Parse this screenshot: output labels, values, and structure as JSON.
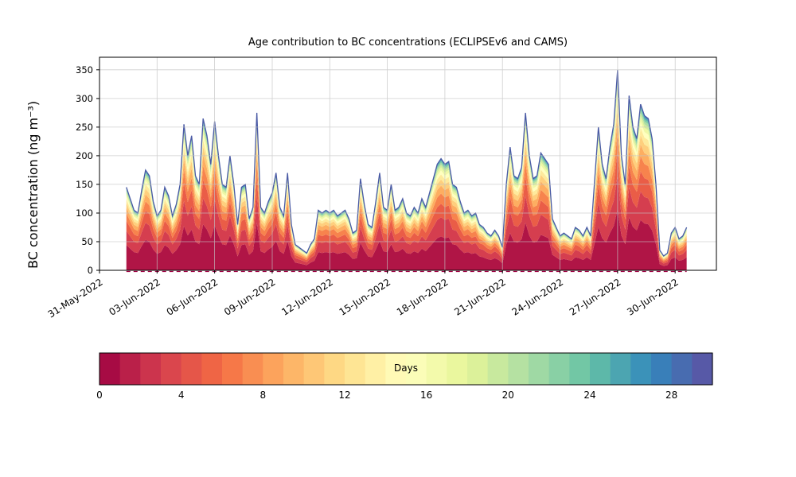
{
  "chart_data": {
    "type": "area",
    "stacked": true,
    "title": "Age contribution to BC concentrations (ECLIPSEv6 and CAMS)",
    "ylabel": "BC concentration (ng m⁻³)",
    "x_unit": "days since 31-May-2022 00:00",
    "x_start": 1.4,
    "x_step": 0.2,
    "total": [
      145,
      125,
      105,
      100,
      140,
      175,
      165,
      120,
      95,
      105,
      145,
      130,
      95,
      115,
      150,
      255,
      200,
      235,
      165,
      150,
      265,
      235,
      185,
      260,
      200,
      150,
      145,
      200,
      150,
      80,
      145,
      150,
      90,
      110,
      275,
      110,
      100,
      120,
      135,
      170,
      110,
      95,
      170,
      80,
      45,
      40,
      35,
      30,
      45,
      55,
      105,
      100,
      105,
      100,
      105,
      95,
      100,
      105,
      90,
      65,
      70,
      160,
      115,
      80,
      75,
      120,
      170,
      110,
      105,
      150,
      105,
      110,
      125,
      100,
      95,
      110,
      100,
      125,
      110,
      135,
      160,
      185,
      195,
      185,
      190,
      150,
      145,
      120,
      100,
      105,
      95,
      100,
      80,
      75,
      65,
      60,
      70,
      60,
      40,
      150,
      215,
      165,
      160,
      180,
      275,
      200,
      160,
      165,
      205,
      195,
      185,
      90,
      75,
      60,
      65,
      60,
      55,
      75,
      70,
      60,
      75,
      60,
      155,
      250,
      185,
      160,
      215,
      255,
      350,
      200,
      150,
      305,
      250,
      230,
      290,
      270,
      265,
      230,
      150,
      35,
      25,
      30,
      65,
      75,
      55,
      60,
      75
    ],
    "age_bins": {
      "edges_days": [
        0,
        2,
        4,
        6,
        8,
        10,
        12,
        14,
        16,
        18,
        20,
        22,
        24,
        26,
        28,
        30
      ],
      "fractions": [
        0.3,
        0.17,
        0.12,
        0.09,
        0.07,
        0.055,
        0.045,
        0.035,
        0.028,
        0.022,
        0.018,
        0.014,
        0.011,
        0.007,
        0.005
      ]
    },
    "x_ticks": {
      "positions": [
        0,
        3,
        6,
        9,
        12,
        15,
        18,
        21,
        24,
        27,
        30
      ],
      "labels": [
        "31-May-2022",
        "03-Jun-2022",
        "06-Jun-2022",
        "09-Jun-2022",
        "12-Jun-2022",
        "15-Jun-2022",
        "18-Jun-2022",
        "21-Jun-2022",
        "24-Jun-2022",
        "27-Jun-2022",
        "30-Jun-2022"
      ]
    },
    "y_ticks": [
      0,
      50,
      100,
      150,
      200,
      250,
      300,
      350
    ],
    "ylim": [
      0,
      372
    ],
    "xlim": [
      0,
      32.15
    ],
    "grid": true,
    "colormap_stops": [
      [
        0.0,
        "#9e0142"
      ],
      [
        0.1,
        "#d53e4f"
      ],
      [
        0.2,
        "#f46d43"
      ],
      [
        0.3,
        "#fdae61"
      ],
      [
        0.4,
        "#fee08b"
      ],
      [
        0.5,
        "#ffffbf"
      ],
      [
        0.6,
        "#e6f598"
      ],
      [
        0.7,
        "#abdda4"
      ],
      [
        0.8,
        "#66c2a5"
      ],
      [
        0.9,
        "#3288bd"
      ],
      [
        1.0,
        "#5e4fa2"
      ]
    ],
    "outline_color": "#4a5aa5",
    "baseline_color": "#9e0142",
    "grid_color": "#c4c4c4",
    "axis_color": "#000000",
    "background": "#ffffff",
    "colorbar": {
      "label": "Days",
      "min": 0,
      "max": 30,
      "segments": 30,
      "tick_values": [
        0,
        4,
        8,
        12,
        16,
        20,
        24,
        28
      ]
    }
  }
}
